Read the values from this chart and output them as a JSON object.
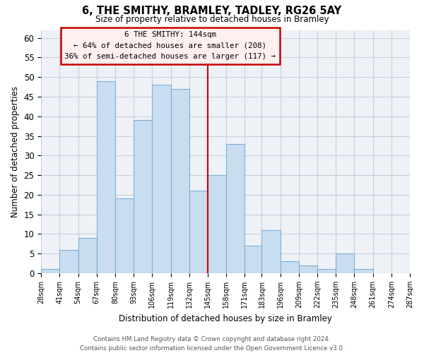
{
  "title": "6, THE SMITHY, BRAMLEY, TADLEY, RG26 5AY",
  "subtitle": "Size of property relative to detached houses in Bramley",
  "xlabel": "Distribution of detached houses by size in Bramley",
  "ylabel": "Number of detached properties",
  "bin_edges": [
    28,
    41,
    54,
    67,
    80,
    93,
    106,
    119,
    132,
    145,
    158,
    171,
    183,
    196,
    209,
    222,
    235,
    248,
    261,
    274,
    287
  ],
  "bar_heights": [
    1,
    6,
    9,
    49,
    19,
    39,
    48,
    47,
    21,
    25,
    33,
    7,
    11,
    3,
    2,
    1,
    5,
    1,
    0,
    0
  ],
  "bar_face_color": "#c8ddf0",
  "bar_edge_color": "#7fb0d8",
  "ref_line_x": 145,
  "ref_line_color": "#cc0000",
  "annotation_title": "6 THE SMITHY: 144sqm",
  "annotation_line1": "← 64% of detached houses are smaller (208)",
  "annotation_line2": "36% of semi-detached houses are larger (117) →",
  "annotation_box_facecolor": "#fff0f0",
  "annotation_box_edgecolor": "#cc0000",
  "ylim": [
    0,
    62
  ],
  "yticks": [
    0,
    5,
    10,
    15,
    20,
    25,
    30,
    35,
    40,
    45,
    50,
    55,
    60
  ],
  "bg_color": "#eef2f7",
  "grid_color": "#c8d0dc",
  "footer_line1": "Contains HM Land Registry data © Crown copyright and database right 2024.",
  "footer_line2": "Contains public sector information licensed under the Open Government Licence v3.0."
}
